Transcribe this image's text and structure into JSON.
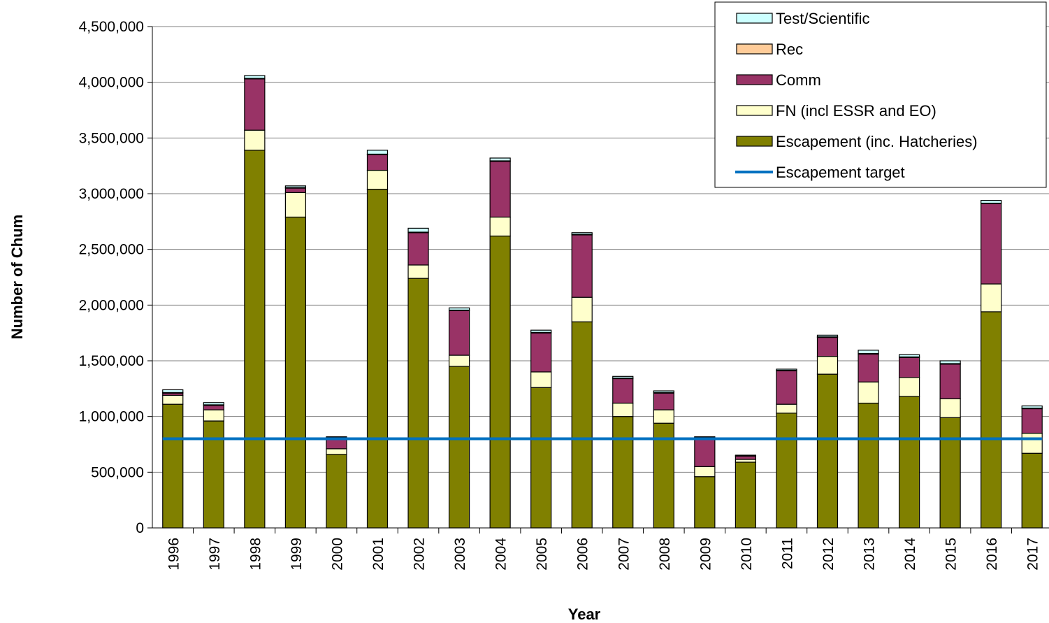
{
  "chart_data": {
    "type": "bar",
    "stacked": true,
    "xlabel": "Year",
    "ylabel": "Number of Chum",
    "ylim": [
      0,
      4500000
    ],
    "yticks": [
      "0",
      "500,000",
      "1,000,000",
      "1,500,000",
      "2,000,000",
      "2,500,000",
      "3,000,000",
      "3,500,000",
      "4,000,000",
      "4,500,000"
    ],
    "ytick_values": [
      0,
      500000,
      1000000,
      1500000,
      2000000,
      2500000,
      3000000,
      3500000,
      4000000,
      4500000
    ],
    "grid": "horizontal",
    "legend_position": "top-right",
    "categories": [
      "1996",
      "1997",
      "1998",
      "1999",
      "2000",
      "2001",
      "2002",
      "2003",
      "2004",
      "2005",
      "2006",
      "2007",
      "2008",
      "2009",
      "2010",
      "2011",
      "2012",
      "2013",
      "2014",
      "2015",
      "2016",
      "2017"
    ],
    "series": [
      {
        "name": "Escapement (inc. Hatcheries)",
        "color": "#808000",
        "values": [
          1110000,
          960000,
          3390000,
          2790000,
          660000,
          3040000,
          2240000,
          1450000,
          2620000,
          1260000,
          1850000,
          1000000,
          940000,
          460000,
          590000,
          1030000,
          1380000,
          1120000,
          1180000,
          990000,
          1940000,
          670000
        ]
      },
      {
        "name": "FN (incl ESSR and EO)",
        "color": "#ffffcc",
        "values": [
          80000,
          100000,
          180000,
          220000,
          50000,
          170000,
          120000,
          100000,
          170000,
          140000,
          220000,
          120000,
          120000,
          90000,
          25000,
          80000,
          160000,
          190000,
          170000,
          170000,
          250000,
          180000
        ]
      },
      {
        "name": "Comm",
        "color": "#993366",
        "values": [
          20000,
          40000,
          460000,
          40000,
          100000,
          140000,
          290000,
          400000,
          500000,
          350000,
          560000,
          220000,
          150000,
          260000,
          30000,
          300000,
          170000,
          250000,
          180000,
          310000,
          720000,
          220000
        ]
      },
      {
        "name": "Rec",
        "color": "#ffcc99",
        "values": [
          5000,
          5000,
          5000,
          5000,
          3000,
          5000,
          5000,
          5000,
          5000,
          5000,
          5000,
          5000,
          5000,
          3000,
          3000,
          5000,
          5000,
          5000,
          5000,
          5000,
          5000,
          5000
        ]
      },
      {
        "name": "Test/Scientific",
        "color": "#ccffff",
        "values": [
          25000,
          20000,
          25000,
          15000,
          5000,
          35000,
          35000,
          20000,
          25000,
          20000,
          15000,
          15000,
          15000,
          5000,
          5000,
          10000,
          15000,
          30000,
          20000,
          25000,
          25000,
          20000
        ]
      }
    ],
    "line": {
      "name": "Escapement target",
      "value": 800000,
      "color": "#0070c0"
    },
    "legend_order": [
      "Test/Scientific",
      "Rec",
      "Comm",
      "FN (incl ESSR and EO)",
      "Escapement (inc. Hatcheries)",
      "Escapement target"
    ]
  }
}
